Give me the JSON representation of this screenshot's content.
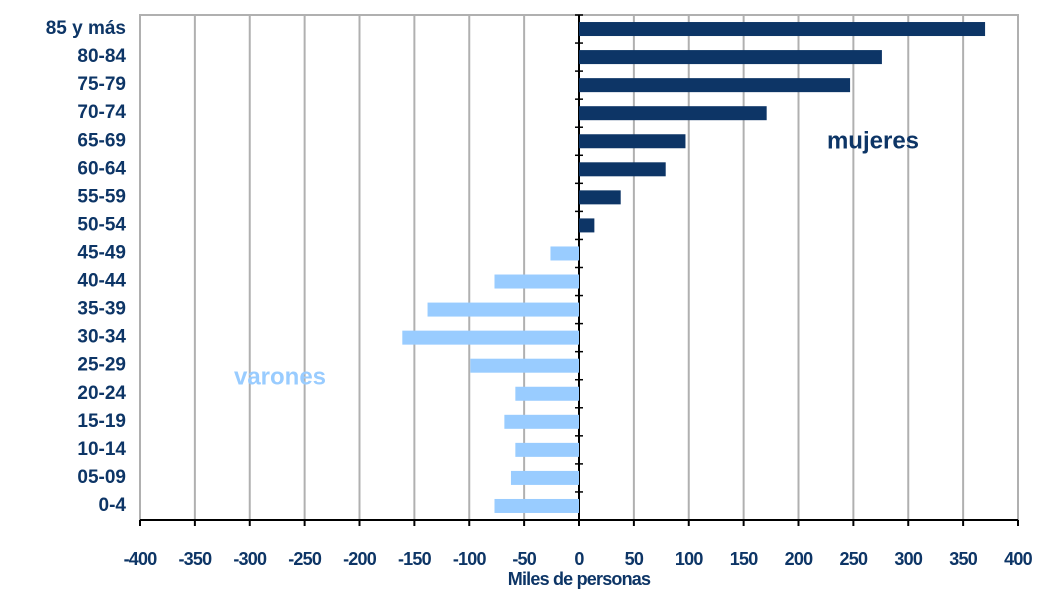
{
  "chart_data": {
    "type": "bar",
    "orientation": "horizontal",
    "x_axis_label": "Miles de personas",
    "categories": [
      "85 y más",
      "80-84",
      "75-79",
      "70-74",
      "65-69",
      "60-64",
      "55-59",
      "50-54",
      "45-49",
      "40-44",
      "35-39",
      "30-34",
      "25-29",
      "20-24",
      "15-19",
      "10-14",
      "05-09",
      "0-4"
    ],
    "series": [
      {
        "name": "mujeres",
        "color": "#0d3566",
        "values": [
          370,
          276,
          247,
          171,
          97,
          79,
          38,
          14,
          null,
          null,
          null,
          null,
          null,
          null,
          null,
          null,
          null,
          null
        ]
      },
      {
        "name": "varones",
        "color": "#99ccff",
        "values": [
          null,
          null,
          null,
          null,
          null,
          null,
          null,
          null,
          -26,
          -77,
          -138,
          -161,
          -99,
          -58,
          -68,
          -58,
          -62,
          -77
        ]
      }
    ],
    "xlim": [
      -400,
      400
    ],
    "xticks": [
      -400,
      -350,
      -300,
      -250,
      -200,
      -150,
      -100,
      -50,
      0,
      50,
      100,
      150,
      200,
      250,
      300,
      350,
      400
    ],
    "grid": true
  }
}
